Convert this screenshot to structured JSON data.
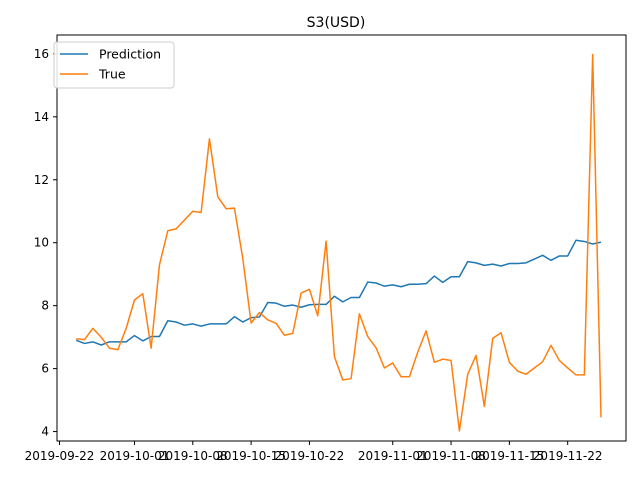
{
  "chart_data": {
    "type": "line",
    "title": "S3(USD)",
    "xlabel": "",
    "ylabel": "",
    "x_tick_labels": [
      "2019-09-22",
      "2019-10-01",
      "2019-10-08",
      "2019-10-15",
      "2019-10-22",
      "2019-11-01",
      "2019-11-08",
      "2019-11-15",
      "2019-11-22"
    ],
    "x_tick_days": [
      0,
      9,
      16,
      23,
      30,
      40,
      47,
      54,
      61
    ],
    "xlim_days": [
      -0.3,
      68
    ],
    "ylim": [
      3.7,
      16.6
    ],
    "y_ticks": [
      4,
      6,
      8,
      10,
      12,
      14,
      16
    ],
    "legend_position": "upper-left",
    "colors": {
      "prediction": "#1f77b4",
      "true": "#ff7f0e"
    },
    "series": [
      {
        "name": "Prediction",
        "color": "#1f77b4",
        "x_days": [
          2,
          3,
          4,
          5,
          6,
          7,
          8,
          9,
          10,
          11,
          12,
          13,
          14,
          15,
          16,
          17,
          18,
          19,
          20,
          21,
          22,
          23,
          24,
          25,
          26,
          27,
          28,
          29,
          30,
          31,
          32,
          33,
          34,
          35,
          36,
          37,
          38,
          39,
          40,
          41,
          42,
          43,
          44,
          45,
          46,
          47,
          48,
          49,
          50,
          51,
          52,
          53,
          54,
          55,
          56,
          57,
          58,
          59,
          60,
          61,
          62,
          63,
          64,
          65
        ],
        "values": [
          6.9,
          6.8,
          6.85,
          6.75,
          6.85,
          6.85,
          6.85,
          7.05,
          6.88,
          7.02,
          7.02,
          7.52,
          7.48,
          7.38,
          7.42,
          7.35,
          7.42,
          7.42,
          7.42,
          7.65,
          7.48,
          7.62,
          7.64,
          8.1,
          8.08,
          7.98,
          8.02,
          7.95,
          8.03,
          8.04,
          8.04,
          8.3,
          8.12,
          8.26,
          8.26,
          8.75,
          8.72,
          8.62,
          8.66,
          8.6,
          8.68,
          8.68,
          8.7,
          8.94,
          8.74,
          8.92,
          8.92,
          9.4,
          9.36,
          9.28,
          9.32,
          9.26,
          9.34,
          9.34,
          9.36,
          9.48,
          9.6,
          9.44,
          9.58,
          9.58,
          10.08,
          10.04,
          9.96,
          10.02
        ]
      },
      {
        "name": "True",
        "color": "#ff7f0e",
        "x_days": [
          2,
          3,
          4,
          5,
          6,
          7,
          8,
          9,
          10,
          11,
          12,
          13,
          14,
          15,
          16,
          17,
          18,
          19,
          20,
          21,
          22,
          23,
          24,
          25,
          26,
          27,
          28,
          29,
          30,
          31,
          32,
          33,
          34,
          35,
          36,
          37,
          38,
          39,
          40,
          41,
          42,
          43,
          44,
          45,
          46,
          47,
          48,
          49,
          50,
          51,
          52,
          53,
          54,
          55,
          56,
          57,
          58,
          59,
          60,
          61,
          62,
          63,
          64,
          65
        ],
        "values": [
          6.95,
          6.92,
          7.28,
          7.0,
          6.65,
          6.6,
          7.28,
          8.18,
          8.38,
          6.65,
          9.3,
          10.38,
          10.44,
          10.72,
          11.0,
          10.96,
          13.3,
          11.46,
          11.08,
          11.1,
          9.5,
          7.45,
          7.78,
          7.55,
          7.44,
          7.06,
          7.12,
          8.4,
          8.52,
          7.68,
          10.05,
          6.38,
          5.64,
          5.68,
          7.74,
          7.02,
          6.66,
          6.02,
          6.18,
          5.74,
          5.74,
          6.52,
          7.2,
          6.2,
          6.3,
          6.26,
          4.02,
          5.82,
          6.42,
          4.8,
          6.96,
          7.14,
          6.2,
          5.92,
          5.82,
          6.02,
          6.22,
          6.74,
          6.26,
          6.02,
          5.8,
          5.8,
          15.98,
          4.45
        ]
      }
    ]
  }
}
